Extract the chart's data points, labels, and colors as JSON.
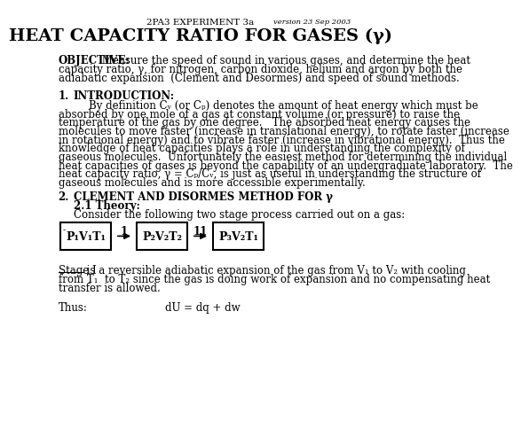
{
  "bg_color": "#ffffff",
  "header_center": "2PA3 EXPERIMENT 3a",
  "header_right": "version 23 Sep 2003",
  "title": "HEAT CAPACITY RATIO FOR GASES (γ)",
  "section1_num": "1.",
  "section1_title": "INTRODUCTION:",
  "section2_num": "2.",
  "section2_title": "CLEMENT AND DISORMES METHOD FOR γ",
  "section2_sub": "2.1 Theory:",
  "section2_sub_body": "Consider the following two stage process carried out on a gas:",
  "box1_text": "P₁V₁T₁",
  "box1_super": "-",
  "box2_text": "P₂V₂T₂",
  "box3_text": "P₃V₂T₁",
  "arrow1_label": "1",
  "arrow2_label": "11",
  "thus_label": "Thus:",
  "thus_equation": "dU = dq + dw",
  "font_family": "serif",
  "obj_line1_bold": "OBJECTIVE:",
  "obj_line1_normal": " Measure the speed of sound in various gases, and determine the heat",
  "obj_line2": "capacity ratio, γ, for nitrogen, carbon dioxide, helium and argon by both the",
  "obj_line3": "adiabatic expansion  (Clement and Desormes) and speed of sound methods.",
  "body_lines": [
    "By definition Cᵥ (or Cₚ) denotes the amount of heat energy which must be",
    "absorbed by one mole of a gas at constant volume (or pressure) to raise the",
    "temperature of the gas by one degree.   The absorbed heat energy causes the",
    "molecules to move faster (increase in translational energy), to rotate faster (increase",
    "in rotational energy) and to vibrate faster (increase in vibrational energy).  Thus the",
    "knowledge of heat capacities plays a role in understanding the complexity of",
    "gaseous molecules.  Unfortunately the easiest method for determining the individual",
    "heat capacities of gases is beyond the capability of an undergraduate laboratory.  The",
    "heat capacity ratio, γ = Cₚ/Cᵥ, is just as useful in understanding the structure of",
    "gaseous molecules and is more accessible experimentally."
  ],
  "stage_word": "Stage I",
  "stage_line1_rest": " is a reversible adiabatic expansion of the gas from V₁ to V₂ with cooling",
  "stage_line2": "from T₁  to T₂ since the gas is doing work of expansion and no compensating heat",
  "stage_line3": "transfer is allowed."
}
